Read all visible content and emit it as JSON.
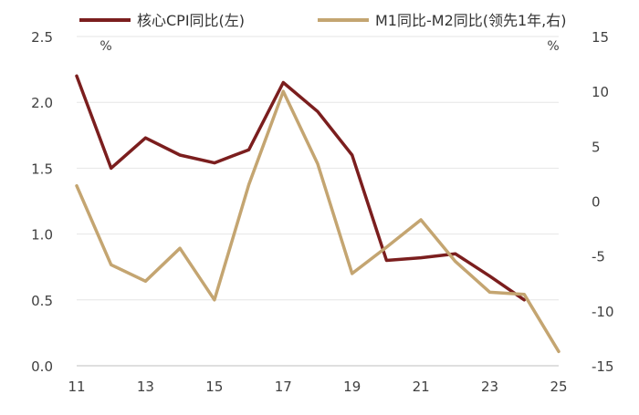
{
  "chart_data": {
    "type": "line",
    "legend_position": "top",
    "grid": true,
    "x": [
      "11",
      "12",
      "13",
      "14",
      "15",
      "16",
      "17",
      "18",
      "19",
      "20",
      "21",
      "22",
      "23",
      "24",
      "25"
    ],
    "x_tick_labels": [
      "11",
      "13",
      "15",
      "17",
      "19",
      "21",
      "23",
      "25"
    ],
    "left_axis": {
      "unit": "%",
      "ylim": [
        0.0,
        2.5
      ],
      "ticks": [
        "0.0",
        "0.5",
        "1.0",
        "1.5",
        "2.0",
        "2.5"
      ]
    },
    "right_axis": {
      "unit": "%",
      "ylim": [
        -15,
        15
      ],
      "ticks": [
        "-15",
        "-10",
        "-5",
        "0",
        "5",
        "10",
        "15"
      ]
    },
    "series": [
      {
        "name": "核心CPI同比(左)",
        "axis": "left",
        "color": "#7B1E1E",
        "values": [
          2.2,
          1.5,
          1.73,
          1.6,
          1.54,
          1.64,
          2.15,
          1.93,
          1.6,
          0.8,
          0.82,
          0.85,
          0.68,
          0.5,
          null
        ]
      },
      {
        "name": "M1同比-M2同比(领先1年,右)",
        "axis": "right",
        "color": "#C4A571",
        "values": [
          1.4,
          -5.8,
          -7.3,
          -4.3,
          -9.0,
          1.5,
          10.0,
          3.4,
          -6.6,
          -4.2,
          -1.7,
          -5.5,
          -8.3,
          -8.5,
          -13.7
        ]
      }
    ]
  }
}
